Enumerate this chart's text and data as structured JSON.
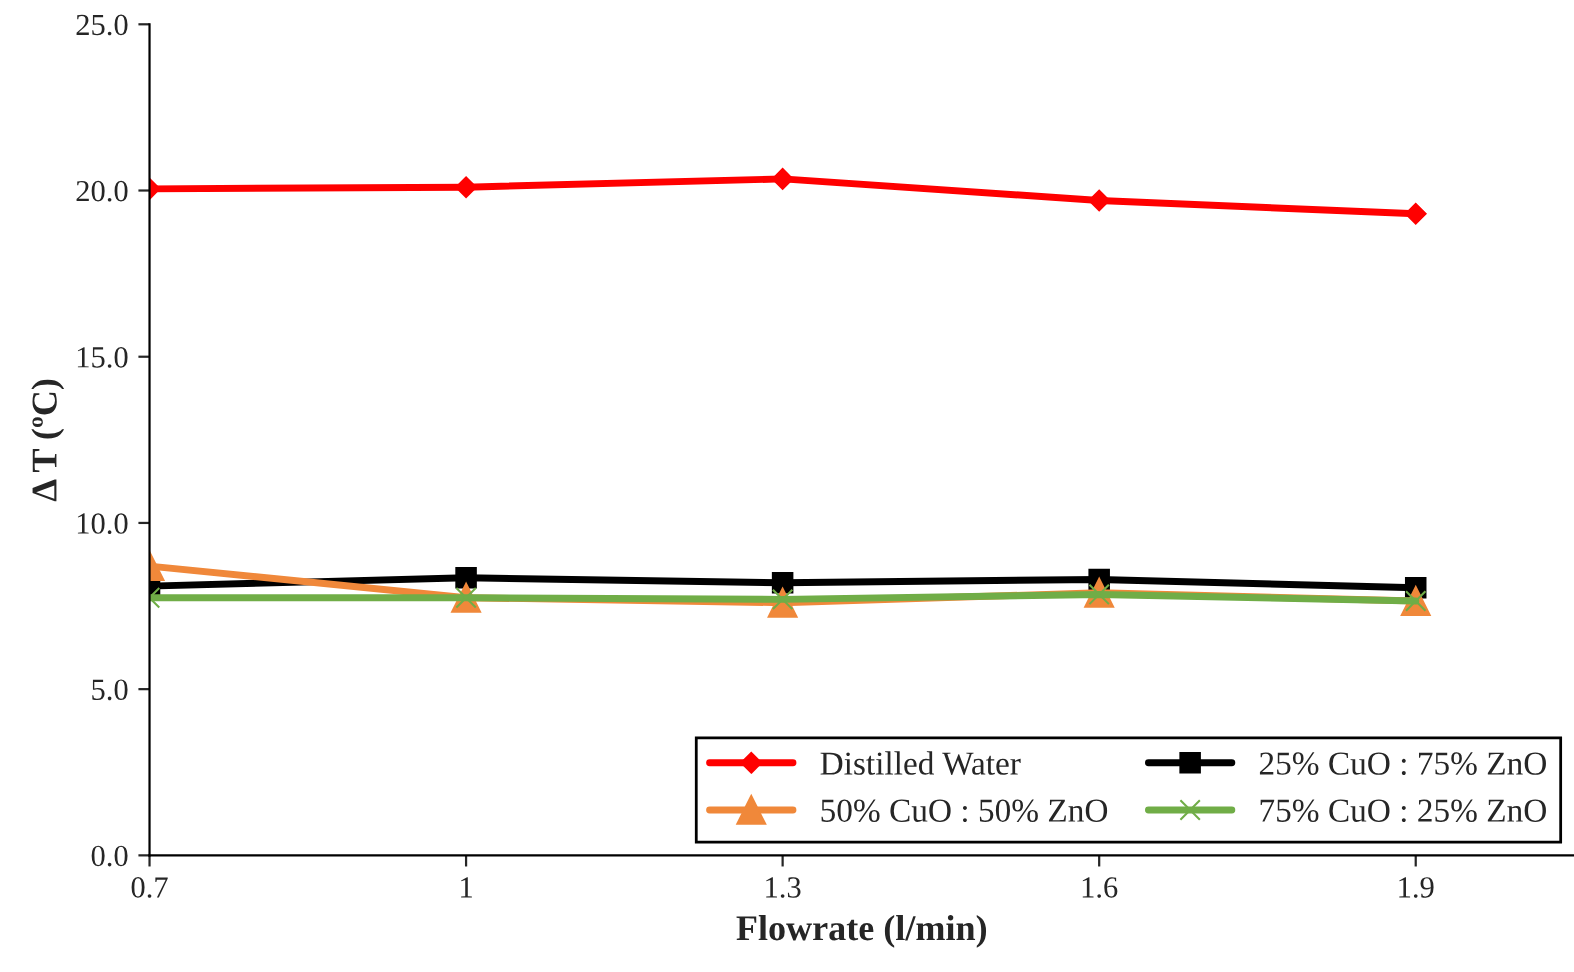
{
  "chart_data": {
    "type": "line",
    "xlabel": "Flowrate (l/min)",
    "ylabel": "Δ T (ºC)",
    "x": [
      0.7,
      1,
      1.3,
      1.6,
      1.9
    ],
    "xlim": [
      0.7,
      2.05
    ],
    "xticks": [
      0.7,
      1,
      1.3,
      1.6,
      1.9
    ],
    "ylim": [
      0,
      25
    ],
    "yticks": [
      {
        "value": 0,
        "label": "0.0"
      },
      {
        "value": 5,
        "label": "5.0"
      },
      {
        "value": 10,
        "label": "10.0"
      },
      {
        "value": 15,
        "label": "15.0"
      },
      {
        "value": 20,
        "label": "20.0"
      },
      {
        "value": 25,
        "label": "25.0"
      }
    ],
    "grid": false,
    "legend": "bottom right",
    "line_style": "solid",
    "series": [
      {
        "name": "Distilled Water",
        "color": "#ff0000",
        "marker": "diamond",
        "values": [
          20.05,
          20.1,
          20.35,
          19.7,
          19.3
        ]
      },
      {
        "name": "25% CuO : 75% ZnO",
        "color": "#000000",
        "marker": "square",
        "values": [
          8.1,
          8.35,
          8.2,
          8.3,
          8.05
        ]
      },
      {
        "name": "50% CuO : 50% ZnO",
        "color": "#f0883a",
        "marker": "triangle",
        "values": [
          8.7,
          7.75,
          7.6,
          7.9,
          7.65
        ]
      },
      {
        "name": "75% CuO : 25% ZnO",
        "color": "#70ad47",
        "marker": "cross",
        "values": [
          7.75,
          7.75,
          7.7,
          7.85,
          7.65
        ]
      }
    ]
  }
}
